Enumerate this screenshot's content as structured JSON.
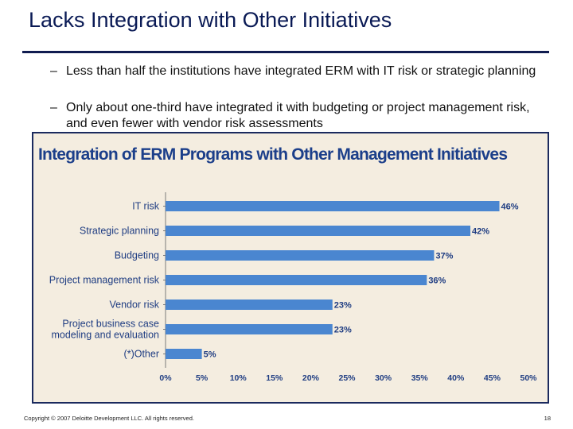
{
  "slide": {
    "title": "Lacks Integration with Other Initiatives",
    "bullets": [
      {
        "dash": "–",
        "text": "Less than half the institutions have integrated ERM with IT risk or strategic planning"
      },
      {
        "dash": "–",
        "text": "Only about one-third have integrated it with budgeting or project management risk, and even fewer with vendor risk assessments"
      }
    ],
    "footer": "Copyright © 2007 Deloitte Development LLC. All rights reserved.",
    "page_number": "18"
  },
  "colors": {
    "title": "#0a1a55",
    "chart_title": "#1c3f8a",
    "bar": "#4a86d0",
    "chart_bg": "#f4ede0",
    "label": "#1f3d82"
  },
  "chart_data": {
    "type": "bar",
    "orientation": "horizontal",
    "title": "Integration of ERM Programs with Other Management Initiatives",
    "categories": [
      [
        "IT risk"
      ],
      [
        "Strategic planning"
      ],
      [
        "Budgeting"
      ],
      [
        "Project management risk"
      ],
      [
        "Vendor risk"
      ],
      [
        "Project business case",
        "modeling and evaluation"
      ],
      [
        "(*)Other"
      ]
    ],
    "values": [
      46,
      42,
      37,
      36,
      23,
      23,
      5
    ],
    "value_labels": [
      "46%",
      "42%",
      "37%",
      "36%",
      "23%",
      "23%",
      "5%"
    ],
    "xlim": [
      0,
      50
    ],
    "xticks": [
      0,
      5,
      10,
      15,
      20,
      25,
      30,
      35,
      40,
      45,
      50
    ],
    "xtick_labels": [
      "0%",
      "5%",
      "10%",
      "15%",
      "20%",
      "25%",
      "30%",
      "35%",
      "40%",
      "45%",
      "50%"
    ],
    "xlabel": "",
    "ylabel": ""
  }
}
